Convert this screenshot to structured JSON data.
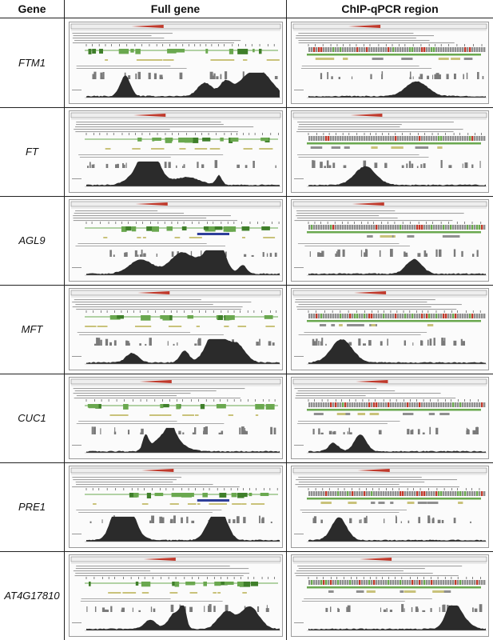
{
  "headers": {
    "gene": "Gene",
    "full": "Full gene",
    "chip": "ChIP-qPCR region"
  },
  "rows": [
    {
      "gene": "FTM1"
    },
    {
      "gene": "FT"
    },
    {
      "gene": "AGL9"
    },
    {
      "gene": "MFT"
    },
    {
      "gene": "CUC1"
    },
    {
      "gene": "PRE1"
    },
    {
      "gene": "AT4G17810"
    }
  ],
  "colors": {
    "gene_model": "#6aa84f",
    "gene_model_dark": "#3f7f2a",
    "repeat": "#c9c27a",
    "signal": "#2b2b2b",
    "track_text": "#555555",
    "arrow": "#c0392b",
    "alt_model": "#2e3e9a"
  }
}
